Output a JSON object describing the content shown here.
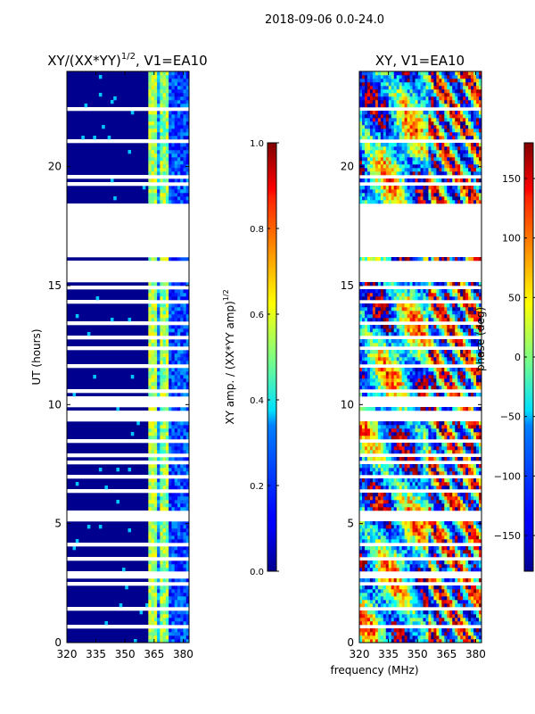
{
  "suptitle": "2018-09-06 0.0-24.0",
  "xlabel": "frequency (MHz)",
  "chart_data": [
    {
      "type": "heatmap",
      "title_base": "XY/(XX*YY)",
      "title_sup": "1/2",
      "title_tail": ", V1=EA10",
      "ylabel": "UT (hours)",
      "xlim": [
        320,
        383
      ],
      "ylim": [
        0,
        24
      ],
      "xticks": [
        "320",
        "335",
        "350",
        "365",
        "380"
      ],
      "yticks": [
        "0",
        "5",
        "10",
        "15",
        "20"
      ],
      "colorbar": {
        "label_base": "XY amp. / (XX*YY amp)",
        "label_sup": "1/2",
        "range": [
          0.0,
          1.0
        ],
        "ticks": [
          "0.0",
          "0.2",
          "0.4",
          "0.6",
          "0.8",
          "1.0"
        ]
      },
      "description": "Normalized XY amplitude, mostly ~0 (dark blue) with bright channels near 360-370 MHz"
    },
    {
      "type": "heatmap",
      "title": "XY, V1=EA10",
      "xlim": [
        320,
        383
      ],
      "ylim": [
        0,
        24
      ],
      "xticks": [
        "320",
        "335",
        "350",
        "365",
        "380"
      ],
      "yticks": [
        "0",
        "5",
        "10",
        "15",
        "20"
      ],
      "colorbar": {
        "label": "phase (deg)",
        "range": [
          -180,
          180
        ],
        "ticks": [
          "−150",
          "−100",
          "−50",
          "0",
          "50",
          "100",
          "150"
        ]
      },
      "description": "XY phase, random-looking across all colors with structure"
    }
  ]
}
